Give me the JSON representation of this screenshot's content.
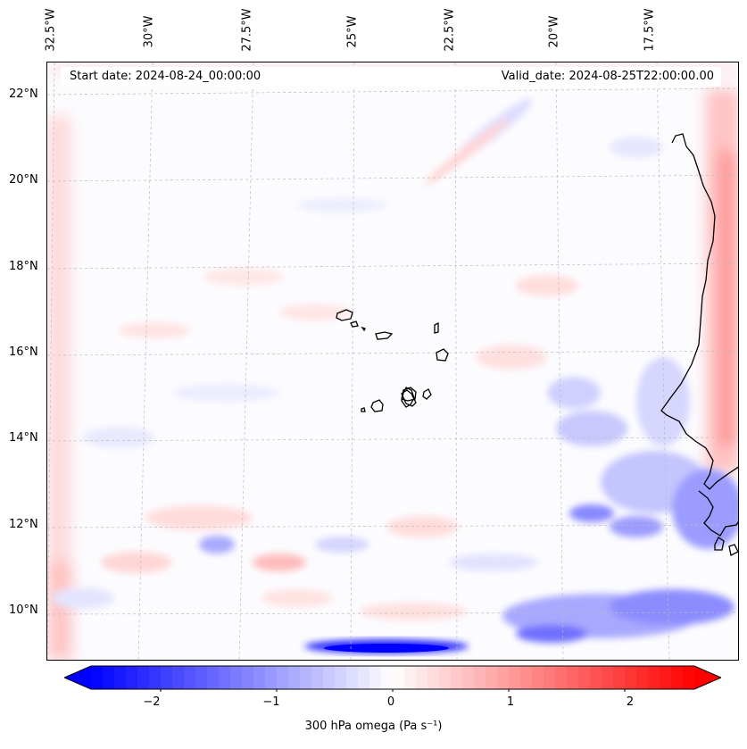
{
  "map": {
    "title_left": "Start date: 2024-08-24_00:00:00",
    "title_right": "Valid_date: 2024-08-25T22:00:00.00",
    "lon_labels": [
      "32.5°W",
      "30°W",
      "27.5°W",
      "25°W",
      "22.5°W",
      "20°W",
      "17.5°W"
    ],
    "lat_labels": [
      "22°N",
      "20°N",
      "18°N",
      "16°N",
      "14°N",
      "12°N",
      "10°N"
    ],
    "region": "Cabo Verde and West African coast",
    "field": "300 hPa omega"
  },
  "colorbar": {
    "label": "300 hPa omega (Pa s⁻¹)",
    "ticks": [
      "−2",
      "−1",
      "0",
      "1",
      "2"
    ],
    "tick_values": [
      -2,
      -1,
      0,
      1,
      2
    ],
    "range": [
      -2.6,
      2.6
    ],
    "extend": "both",
    "colormap": "bwr",
    "color_negative": "#0000ff",
    "color_zero": "#ffffff",
    "color_positive": "#ff0000"
  }
}
